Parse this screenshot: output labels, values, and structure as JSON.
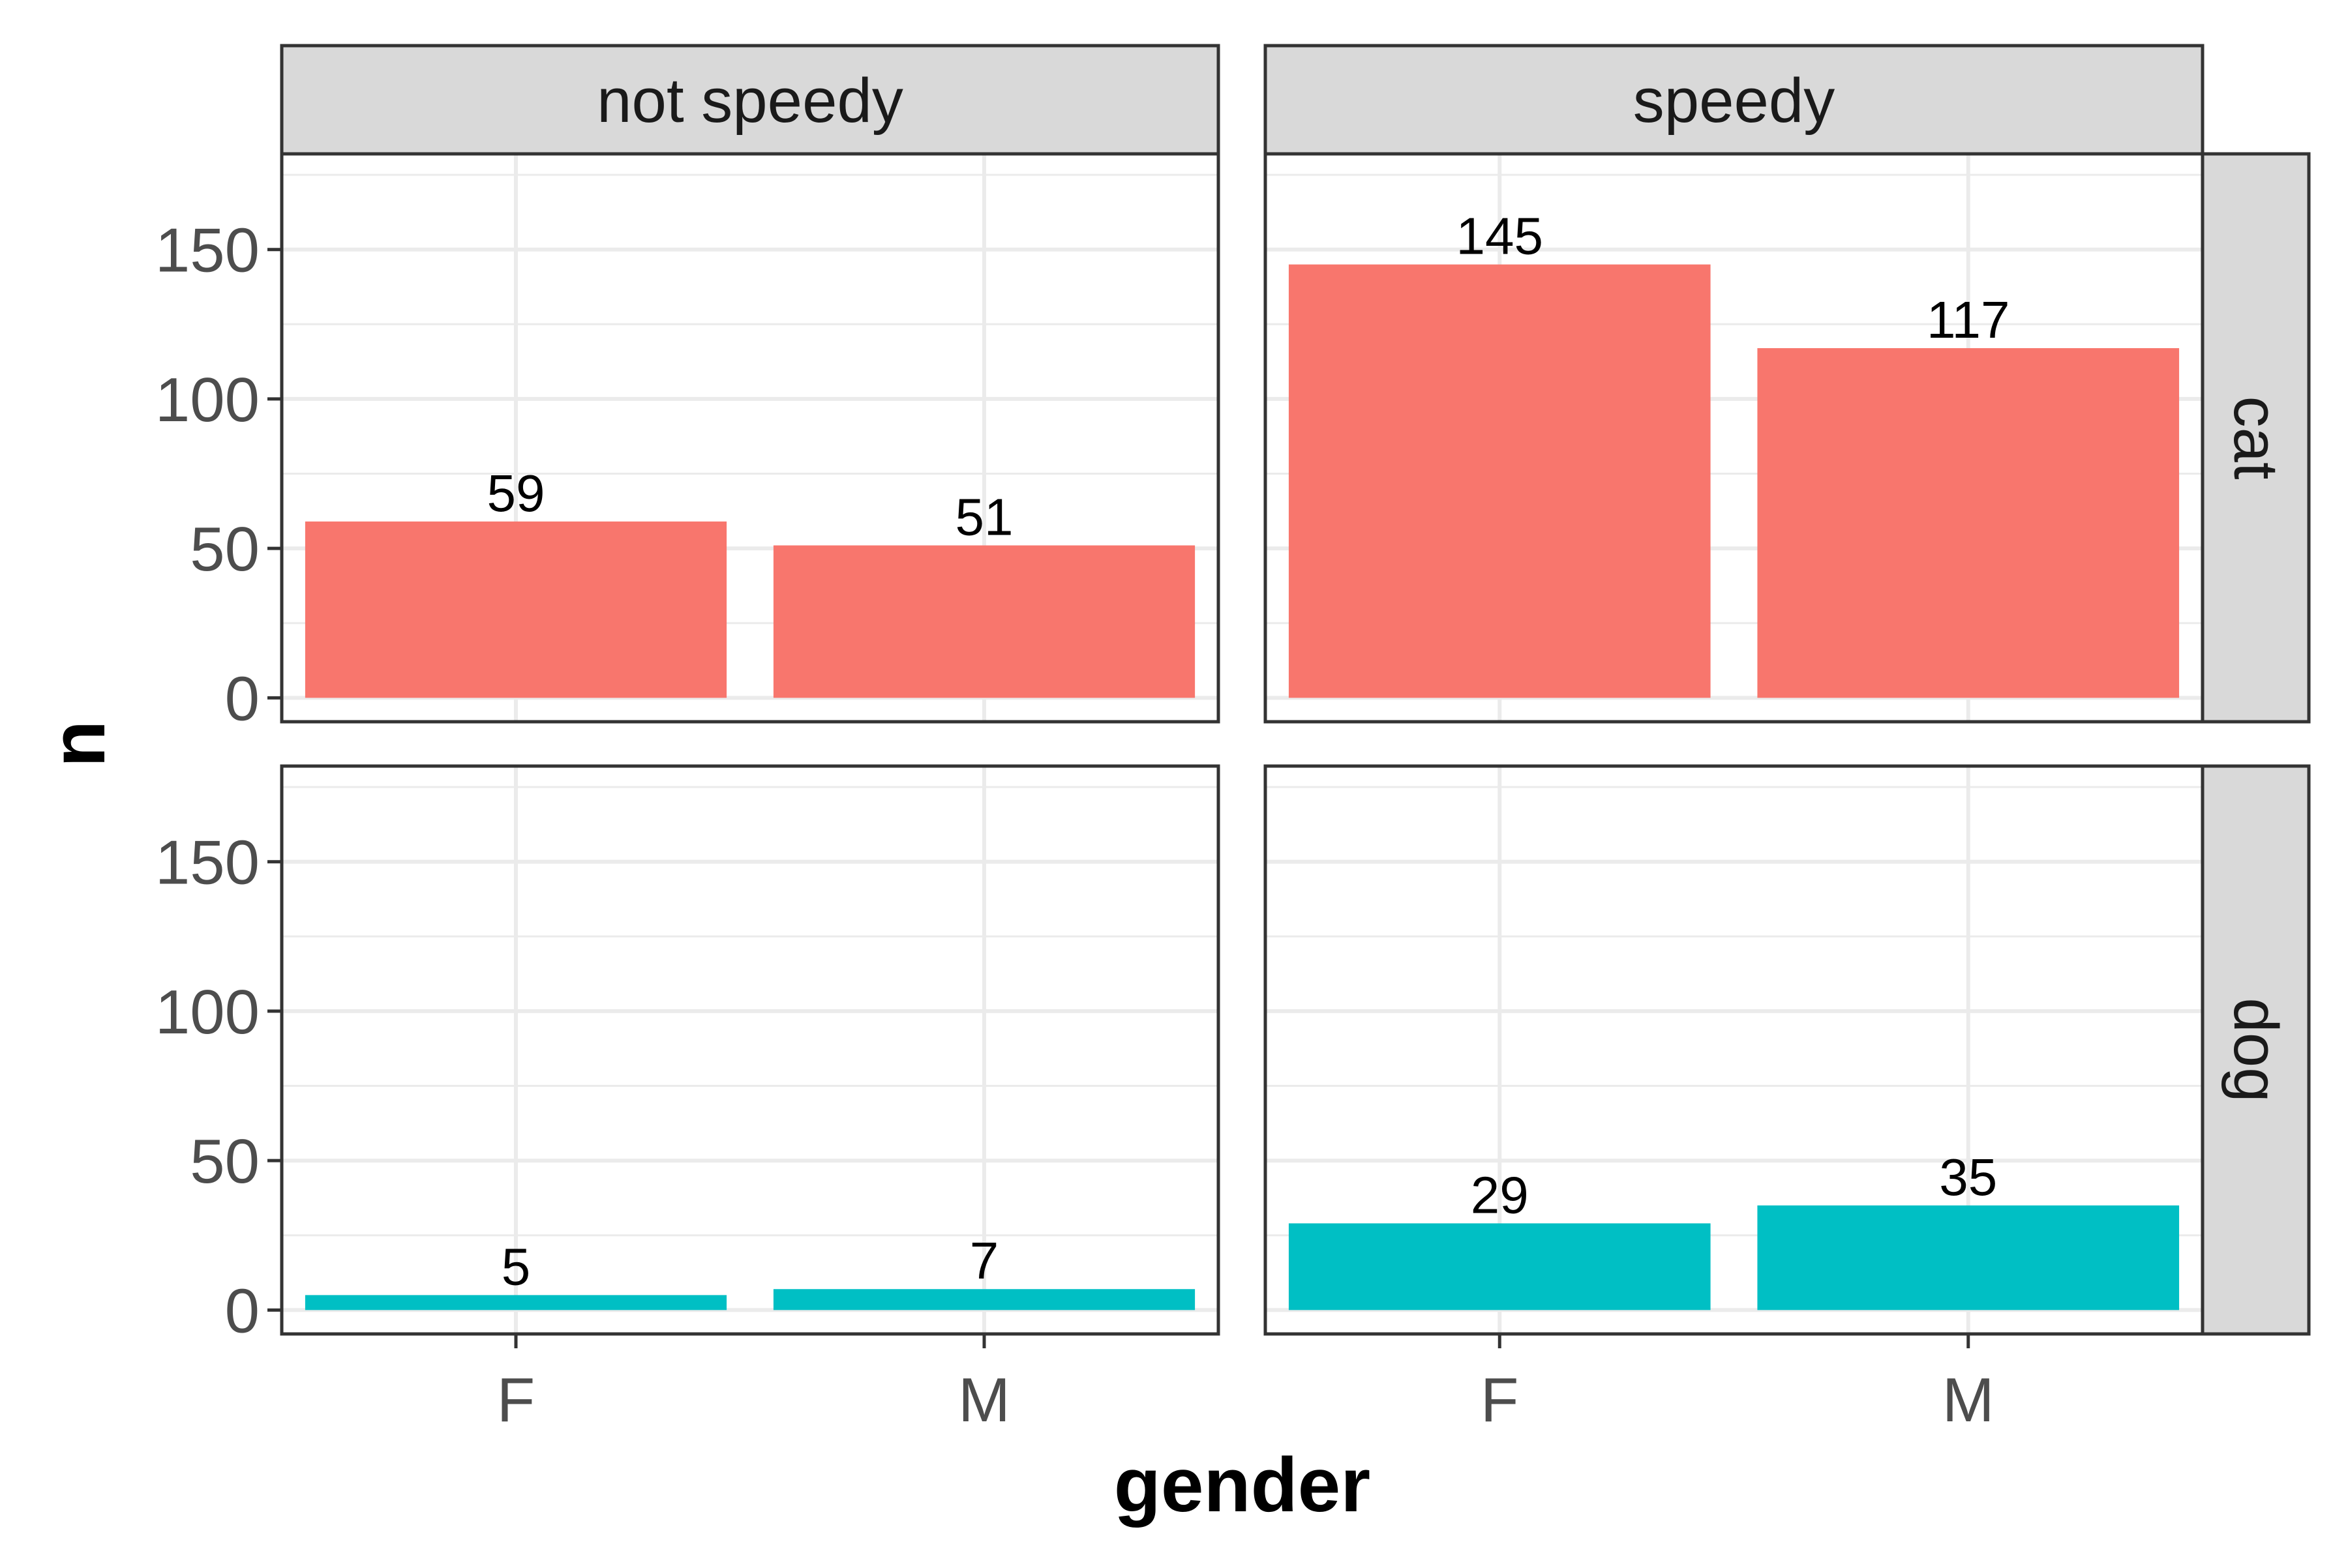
{
  "chart_data": {
    "type": "bar",
    "facet": {
      "cols": [
        "not speedy",
        "speedy"
      ],
      "rows": [
        "cat",
        "dog"
      ]
    },
    "categories": [
      "F",
      "M"
    ],
    "panels": [
      {
        "row": "cat",
        "col": "not speedy",
        "values": [
          59,
          51
        ],
        "labels": [
          "59",
          "51"
        ]
      },
      {
        "row": "cat",
        "col": "speedy",
        "values": [
          145,
          117
        ],
        "labels": [
          "145",
          "117"
        ]
      },
      {
        "row": "dog",
        "col": "not speedy",
        "values": [
          5,
          7
        ],
        "labels": [
          "5",
          "7"
        ]
      },
      {
        "row": "dog",
        "col": "speedy",
        "values": [
          29,
          35
        ],
        "labels": [
          "29",
          "35"
        ]
      }
    ],
    "xlabel": "gender",
    "ylabel": "n",
    "ylim": [
      -8,
      182
    ],
    "yticks": [
      0,
      50,
      100,
      150
    ],
    "ytick_labels": [
      "0",
      "50",
      "100",
      "150"
    ],
    "grid": true,
    "colors": {
      "cat": "#F8766D",
      "dog": "#00BFC4",
      "panel_border": "#333333",
      "strip_fill": "#D9D9D9",
      "grid": "#EBEBEB"
    }
  }
}
